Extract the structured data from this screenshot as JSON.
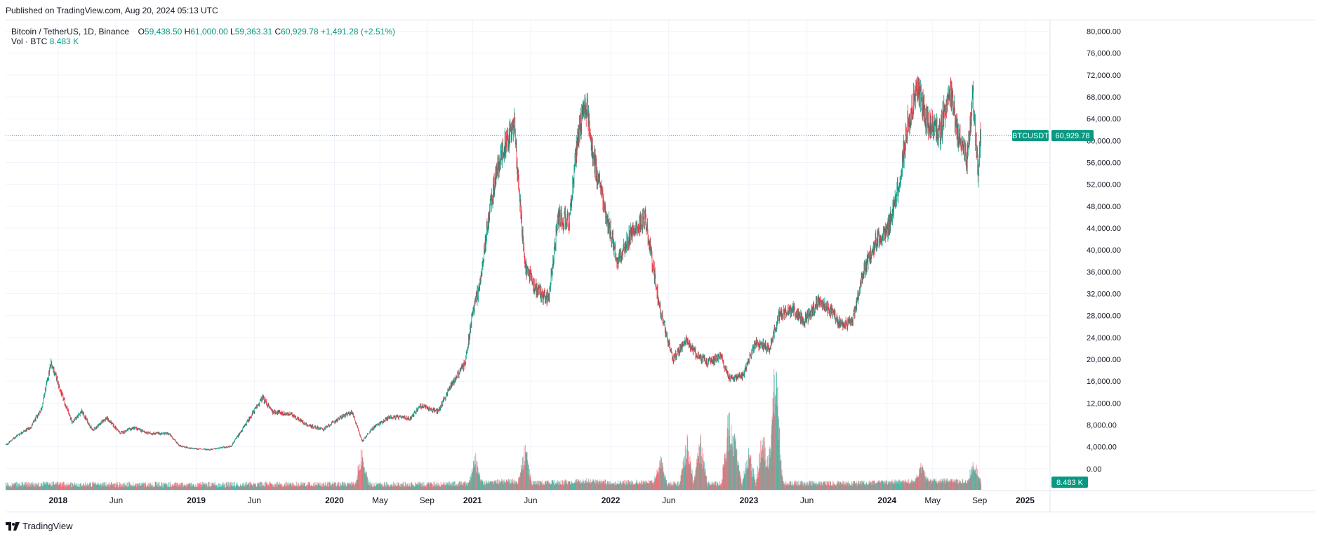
{
  "header": {
    "published": "Published on TradingView.com, Aug 20, 2024 05:13 UTC"
  },
  "legend": {
    "symbol": "Bitcoin / TetherUS, 1D, Binance",
    "open_label": "O",
    "open": "59,438.50",
    "high_label": "H",
    "high": "61,000.00",
    "low_label": "L",
    "low": "59,363.31",
    "close_label": "C",
    "close": "60,929.78",
    "change": "+1,491.28 (+2.51%)",
    "vol_label": "Vol · BTC",
    "vol_value": "8.483 K"
  },
  "footer": {
    "brand": "TradingView"
  },
  "colors": {
    "up": "#089981",
    "down": "#F23645",
    "grid": "#F0F3FA",
    "text": "#131722"
  },
  "chart_data": {
    "type": "candlestick",
    "title": "Bitcoin / TetherUS, 1D, Binance",
    "price_axis_labels": [
      "80,000.00",
      "76,000.00",
      "72,000.00",
      "68,000.00",
      "64,000.00",
      "60,000.00",
      "56,000.00",
      "52,000.00",
      "48,000.00",
      "44,000.00",
      "40,000.00",
      "36,000.00",
      "32,000.00",
      "28,000.00",
      "24,000.00",
      "20,000.00",
      "16,000.00",
      "12,000.00",
      "8,000.00",
      "4,000.00",
      "0.00"
    ],
    "price_axis_values": [
      80000,
      76000,
      72000,
      68000,
      64000,
      60000,
      56000,
      52000,
      48000,
      44000,
      40000,
      36000,
      32000,
      28000,
      24000,
      20000,
      16000,
      12000,
      8000,
      4000,
      0
    ],
    "ylim": [
      -4000,
      82000
    ],
    "time_axis": [
      {
        "label": "2018",
        "t": 2018.0,
        "bold": true
      },
      {
        "label": "Jun",
        "t": 2018.42,
        "bold": false
      },
      {
        "label": "2019",
        "t": 2019.0,
        "bold": true
      },
      {
        "label": "Jun",
        "t": 2019.42,
        "bold": false
      },
      {
        "label": "2020",
        "t": 2020.0,
        "bold": true
      },
      {
        "label": "May",
        "t": 2020.33,
        "bold": false
      },
      {
        "label": "Sep",
        "t": 2020.67,
        "bold": false
      },
      {
        "label": "2021",
        "t": 2021.0,
        "bold": true
      },
      {
        "label": "Jun",
        "t": 2021.42,
        "bold": false
      },
      {
        "label": "2022",
        "t": 2022.0,
        "bold": true
      },
      {
        "label": "Jun",
        "t": 2022.42,
        "bold": false
      },
      {
        "label": "2023",
        "t": 2023.0,
        "bold": true
      },
      {
        "label": "Jun",
        "t": 2023.42,
        "bold": false
      },
      {
        "label": "2024",
        "t": 2024.0,
        "bold": true
      },
      {
        "label": "May",
        "t": 2024.33,
        "bold": false
      },
      {
        "label": "Sep",
        "t": 2024.67,
        "bold": false
      },
      {
        "label": "2025",
        "t": 2025.0,
        "bold": true
      }
    ],
    "xlim": [
      2017.62,
      2025.18
    ],
    "price_path": [
      [
        2017.62,
        4300
      ],
      [
        2017.72,
        6400
      ],
      [
        2017.8,
        7500
      ],
      [
        2017.88,
        11000
      ],
      [
        2017.95,
        19500
      ],
      [
        2018.02,
        14000
      ],
      [
        2018.1,
        8500
      ],
      [
        2018.17,
        10500
      ],
      [
        2018.25,
        7000
      ],
      [
        2018.35,
        9300
      ],
      [
        2018.45,
        6500
      ],
      [
        2018.55,
        7500
      ],
      [
        2018.65,
        6500
      ],
      [
        2018.8,
        6400
      ],
      [
        2018.88,
        4200
      ],
      [
        2018.96,
        3700
      ],
      [
        2019.1,
        3500
      ],
      [
        2019.25,
        4100
      ],
      [
        2019.35,
        7800
      ],
      [
        2019.48,
        13000
      ],
      [
        2019.55,
        10500
      ],
      [
        2019.7,
        9800
      ],
      [
        2019.8,
        8000
      ],
      [
        2019.92,
        7200
      ],
      [
        2020.05,
        9500
      ],
      [
        2020.13,
        10300
      ],
      [
        2020.2,
        5000
      ],
      [
        2020.28,
        7500
      ],
      [
        2020.4,
        9500
      ],
      [
        2020.55,
        9200
      ],
      [
        2020.62,
        11500
      ],
      [
        2020.75,
        10500
      ],
      [
        2020.85,
        15500
      ],
      [
        2020.95,
        19500
      ],
      [
        2021.0,
        29000
      ],
      [
        2021.05,
        33000
      ],
      [
        2021.12,
        47000
      ],
      [
        2021.2,
        57000
      ],
      [
        2021.3,
        63000
      ],
      [
        2021.38,
        37000
      ],
      [
        2021.45,
        33000
      ],
      [
        2021.55,
        31000
      ],
      [
        2021.62,
        46000
      ],
      [
        2021.7,
        45000
      ],
      [
        2021.76,
        60000
      ],
      [
        2021.82,
        67000
      ],
      [
        2021.88,
        56000
      ],
      [
        2021.96,
        47000
      ],
      [
        2022.05,
        38000
      ],
      [
        2022.15,
        43000
      ],
      [
        2022.25,
        46000
      ],
      [
        2022.35,
        30000
      ],
      [
        2022.45,
        20000
      ],
      [
        2022.55,
        23500
      ],
      [
        2022.62,
        21000
      ],
      [
        2022.7,
        19500
      ],
      [
        2022.8,
        20500
      ],
      [
        2022.86,
        16500
      ],
      [
        2022.95,
        16800
      ],
      [
        2023.05,
        23000
      ],
      [
        2023.15,
        22000
      ],
      [
        2023.22,
        28000
      ],
      [
        2023.32,
        29000
      ],
      [
        2023.4,
        27000
      ],
      [
        2023.5,
        30500
      ],
      [
        2023.6,
        29000
      ],
      [
        2023.68,
        26000
      ],
      [
        2023.75,
        27000
      ],
      [
        2023.82,
        35000
      ],
      [
        2023.92,
        42000
      ],
      [
        2024.0,
        43000
      ],
      [
        2024.08,
        51000
      ],
      [
        2024.15,
        63000
      ],
      [
        2024.22,
        70000
      ],
      [
        2024.3,
        63000
      ],
      [
        2024.38,
        61000
      ],
      [
        2024.45,
        70000
      ],
      [
        2024.52,
        60000
      ],
      [
        2024.58,
        57000
      ],
      [
        2024.62,
        68000
      ],
      [
        2024.66,
        54000
      ],
      [
        2024.67,
        59400
      ],
      [
        2024.68,
        60930
      ]
    ],
    "last_price": 60929.78,
    "last_price_label": "60,929.78",
    "symbol_tag": "BTCUSDT",
    "volume": {
      "last_label": "8.483 K",
      "spikes": [
        {
          "t": 2020.2,
          "h": 65
        },
        {
          "t": 2021.02,
          "h": 45
        },
        {
          "t": 2021.38,
          "h": 65
        },
        {
          "t": 2022.36,
          "h": 45
        },
        {
          "t": 2022.55,
          "h": 80
        },
        {
          "t": 2022.65,
          "h": 75
        },
        {
          "t": 2022.85,
          "h": 110
        },
        {
          "t": 2022.9,
          "h": 80
        },
        {
          "t": 2023.0,
          "h": 60
        },
        {
          "t": 2023.1,
          "h": 95
        },
        {
          "t": 2023.18,
          "h": 130
        },
        {
          "t": 2023.2,
          "h": 120
        },
        {
          "t": 2024.25,
          "h": 30
        },
        {
          "t": 2024.63,
          "h": 32
        }
      ]
    }
  }
}
